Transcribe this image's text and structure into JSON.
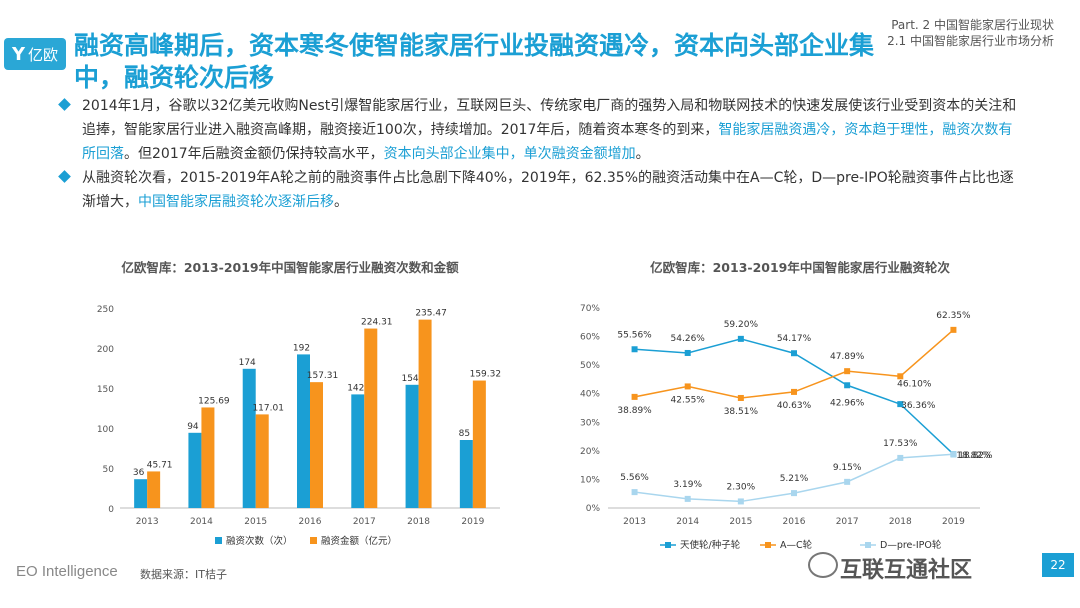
{
  "logo": {
    "mark": "Y",
    "text": "亿欧"
  },
  "header": {
    "title": "融资高峰期后，资本寒冬使智能家居行业投融资遇冷，资本向头部企业集中，融资轮次后移",
    "part": "Part. 2 中国智能家居行业现状",
    "section": "2.1 中国智能家居行业市场分析"
  },
  "bullets": [
    [
      {
        "t": "2014年1月，谷歌以32亿美元收购Nest引爆智能家居行业，互联网巨头、传统家电厂商的强势入局和物联网技术的快速发展使该行业受到资本的关注和追捧，智能家居行业进入融资高峰期，融资接近100次，持续增加。2017年后，随着资本寒冬的到来，",
        "hl": false
      },
      {
        "t": "智能家居融资遇冷，资本趋于理性，融资次数有所回落",
        "hl": true
      },
      {
        "t": "。但2017年后融资金额仍保持较高水平，",
        "hl": false
      },
      {
        "t": "资本向头部企业集中，单次融资金额增加",
        "hl": true
      },
      {
        "t": "。",
        "hl": false
      }
    ],
    [
      {
        "t": "从融资轮次看，2015-2019年A轮之前的融资事件占比急剧下降40%，2019年，62.35%的融资活动集中在A—C轮，D—pre-IPO轮融资事件占比也逐渐增大，",
        "hl": false
      },
      {
        "t": "中国智能家居融资轮次逐渐后移",
        "hl": true
      },
      {
        "t": "。",
        "hl": false
      }
    ]
  ],
  "chart_data": [
    {
      "type": "bar",
      "title": "亿欧智库：2013-2019年中国智能家居行业融资次数和金额",
      "categories": [
        "2013",
        "2014",
        "2015",
        "2016",
        "2017",
        "2018",
        "2019"
      ],
      "ylim": [
        0,
        250
      ],
      "yticks": [
        0,
        50,
        100,
        150,
        200,
        250
      ],
      "legend_position": "bottom",
      "series": [
        {
          "name": "融资次数（次）",
          "color": "#1b9fd4",
          "values": [
            36,
            94,
            174,
            192,
            142,
            154,
            85
          ],
          "labels": [
            "36",
            "94",
            "174",
            "192",
            "142",
            "154",
            "85"
          ]
        },
        {
          "name": "融资金额（亿元）",
          "color": "#f7941d",
          "values": [
            45.71,
            125.69,
            117.01,
            157.31,
            224.31,
            235.47,
            159.32
          ],
          "labels": [
            "45.71",
            "125.69",
            "117.01",
            "157.31",
            "224.31",
            "235.47",
            "159.32"
          ]
        }
      ]
    },
    {
      "type": "line",
      "title": "亿欧智库：2013-2019年中国智能家居行业融资轮次",
      "categories": [
        "2013",
        "2014",
        "2015",
        "2016",
        "2017",
        "2018",
        "2019"
      ],
      "ylim": [
        0,
        70
      ],
      "yticks": [
        "0%",
        "10%",
        "20%",
        "30%",
        "40%",
        "50%",
        "60%",
        "70%"
      ],
      "legend_position": "bottom",
      "series": [
        {
          "name": "天使轮/种子轮",
          "color": "#1b9fd4",
          "values": [
            55.56,
            54.26,
            59.2,
            54.17,
            42.96,
            36.36,
            18.82
          ],
          "labels": [
            "55.56%",
            "54.26%",
            "59.20%",
            "54.17%",
            "42.96%",
            "36.36%",
            "18.82%"
          ]
        },
        {
          "name": "A—C轮",
          "color": "#f7941d",
          "values": [
            38.89,
            42.55,
            38.51,
            40.63,
            47.89,
            46.1,
            62.35
          ],
          "labels": [
            "38.89%",
            "42.55%",
            "38.51%",
            "40.63%",
            "47.89%",
            "46.10%",
            "62.35%"
          ]
        },
        {
          "name": "D—pre-IPO轮",
          "color": "#a9d6ee",
          "values": [
            5.56,
            3.19,
            2.3,
            5.21,
            9.15,
            17.53,
            18.82
          ],
          "labels": [
            "5.56%",
            "3.19%",
            "2.30%",
            "5.21%",
            "9.15%",
            "17.53%",
            "18.82%"
          ]
        }
      ]
    }
  ],
  "footer": {
    "brand": "EO Intelligence",
    "source": "数据来源：IT桔子",
    "watermark": "互联互通社区",
    "page": "22"
  }
}
